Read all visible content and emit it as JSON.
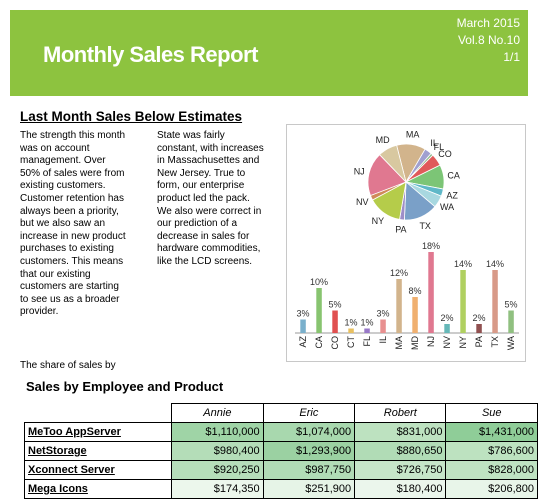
{
  "header": {
    "title": "Monthly Sales Report",
    "date": "March 2015",
    "volume": "Vol.8 No.10",
    "page": "1/1",
    "bg_color": "#8dc33f"
  },
  "section1": {
    "heading": "Last Month Sales Below Estimates",
    "col1_lines": [
      "The strength this month",
      "was on account",
      "management. Over",
      "50% of sales were from",
      "existing customers.",
      "Customer retention has",
      "always been a priority,",
      "but we also saw an",
      "increase in new product",
      "purchases to existing",
      "customers. This means",
      "that our existing",
      "customers are starting",
      "to see us as a broader",
      "provider."
    ],
    "col2_lines": [
      "State was fairly",
      "constant, with increases",
      "in Massachusettes and",
      "New Jersey. True to",
      "form, our enterprise",
      "product led the pack.",
      "We also were correct in",
      "our prediction of a",
      "decrease in sales for",
      "hardware commodities,",
      "like the LCD screens."
    ],
    "share_caption": "The share of sales by"
  },
  "chart_data": [
    {
      "type": "pie",
      "categories": [
        "MA",
        "IL",
        "FL",
        "CO",
        "CA",
        "AZ",
        "WA",
        "TX",
        "PA",
        "NY",
        "NV",
        "NJ",
        "MD"
      ],
      "values": [
        12,
        3,
        1,
        5,
        10,
        3,
        5,
        14,
        2,
        14,
        2,
        18,
        8
      ],
      "colors": [
        "#d2b48c",
        "#a0a0d0",
        "#8fbc8f",
        "#e05a5a",
        "#7cc576",
        "#5fb8c8",
        "#a8d8e0",
        "#7aa0c8",
        "#9e8ec8",
        "#b5cc4a",
        "#d08a5a",
        "#e07890",
        "#d8c8a0"
      ]
    },
    {
      "type": "bar",
      "categories": [
        "AZ",
        "CA",
        "CO",
        "CT",
        "FL",
        "IL",
        "MA",
        "MD",
        "NJ",
        "NV",
        "NY",
        "PA",
        "TX",
        "WA"
      ],
      "values": [
        3,
        10,
        5,
        1,
        1,
        3,
        12,
        8,
        18,
        2,
        14,
        2,
        14,
        5
      ],
      "labels": [
        "3%",
        "10%",
        "5%",
        "1%",
        "1%",
        "3%",
        "12%",
        "8%",
        "18%",
        "2%",
        "14%",
        "2%",
        "14%",
        "5%"
      ],
      "colors": [
        "#7ab0cc",
        "#88c470",
        "#e05050",
        "#e8c060",
        "#9878c8",
        "#e89090",
        "#d2b48c",
        "#f0b070",
        "#e07890",
        "#66b8b8",
        "#b0d060",
        "#905050",
        "#d89a88",
        "#90c080"
      ],
      "ylim": [
        0,
        20
      ]
    }
  ],
  "employees": {
    "heading": "Sales by Employee and Product",
    "columns": [
      "Annie",
      "Eric",
      "Robert",
      "Sue"
    ],
    "rows": [
      {
        "product": "MeToo AppServer",
        "values": [
          "$1,110,000",
          "$1,074,000",
          "$831,000",
          "$1,431,000"
        ]
      },
      {
        "product": "NetStorage",
        "values": [
          "$980,400",
          "$1,293,900",
          "$880,650",
          "$786,600"
        ]
      },
      {
        "product": "Xconnect Server",
        "values": [
          "$920,250",
          "$987,750",
          "$726,750",
          "$828,000"
        ]
      },
      {
        "product": "Mega Icons",
        "values": [
          "$174,350",
          "$251,900",
          "$180,400",
          "$206,800"
        ]
      }
    ],
    "shades": [
      [
        "#9fd4a6",
        "#a8d8ae",
        "#bde2c0",
        "#8fcd98"
      ],
      [
        "#b4ddb8",
        "#9bd1a2",
        "#b1dcb6",
        "#bde2c0"
      ],
      [
        "#b6deba",
        "#b1dcb6",
        "#c6e6c9",
        "#bfe3c2"
      ],
      [
        "#ecf7ec",
        "#e6f4e7",
        "#ebf6ec",
        "#e8f5e9"
      ]
    ]
  }
}
